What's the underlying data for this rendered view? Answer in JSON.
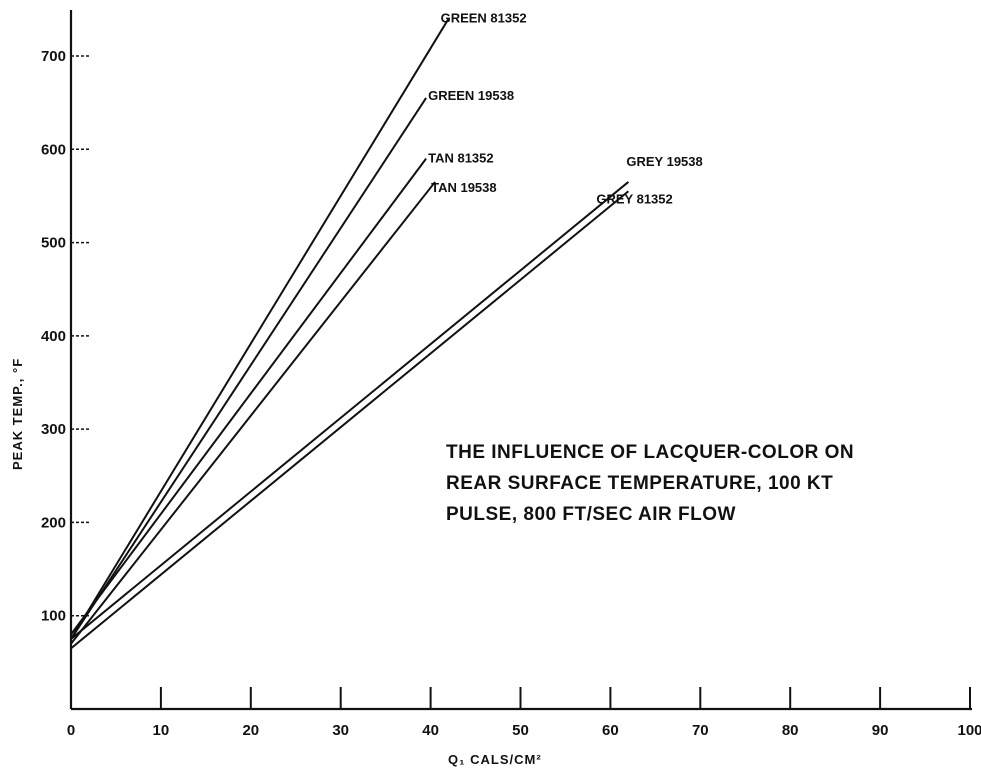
{
  "chart_data": {
    "type": "line",
    "title": "",
    "xlabel": "Q₁ CALS/CM²",
    "ylabel": "PEAK TEMP., °F",
    "xlim": [
      0,
      100
    ],
    "ylim": [
      0,
      750
    ],
    "x_ticks": [
      "0",
      "10",
      "20",
      "30",
      "40",
      "50",
      "60",
      "70",
      "80",
      "90",
      "100"
    ],
    "y_ticks": [
      "100",
      "200",
      "300",
      "400",
      "500",
      "600",
      "700"
    ],
    "grid": false,
    "legend": "none (series labelled at line ends)",
    "annotation": [
      "THE INFLUENCE OF LACQUER-COLOR ON",
      "REAR SURFACE TEMPERATURE, 100 KT",
      "PULSE, 800 FT/SEC AIR FLOW"
    ],
    "series": [
      {
        "name": "GREEN 81352",
        "x": [
          0,
          42
        ],
        "y": [
          75,
          740
        ]
      },
      {
        "name": "GREEN 19538",
        "x": [
          0,
          39.5
        ],
        "y": [
          75,
          655
        ]
      },
      {
        "name": "TAN 81352",
        "x": [
          0,
          39.5
        ],
        "y": [
          80,
          590
        ]
      },
      {
        "name": "TAN 19538",
        "x": [
          0,
          40.5
        ],
        "y": [
          70,
          565
        ]
      },
      {
        "name": "GREY 19538",
        "x": [
          0,
          62
        ],
        "y": [
          75,
          565
        ]
      },
      {
        "name": "GREY 81352",
        "x": [
          0,
          62
        ],
        "y": [
          65,
          555
        ]
      }
    ]
  }
}
